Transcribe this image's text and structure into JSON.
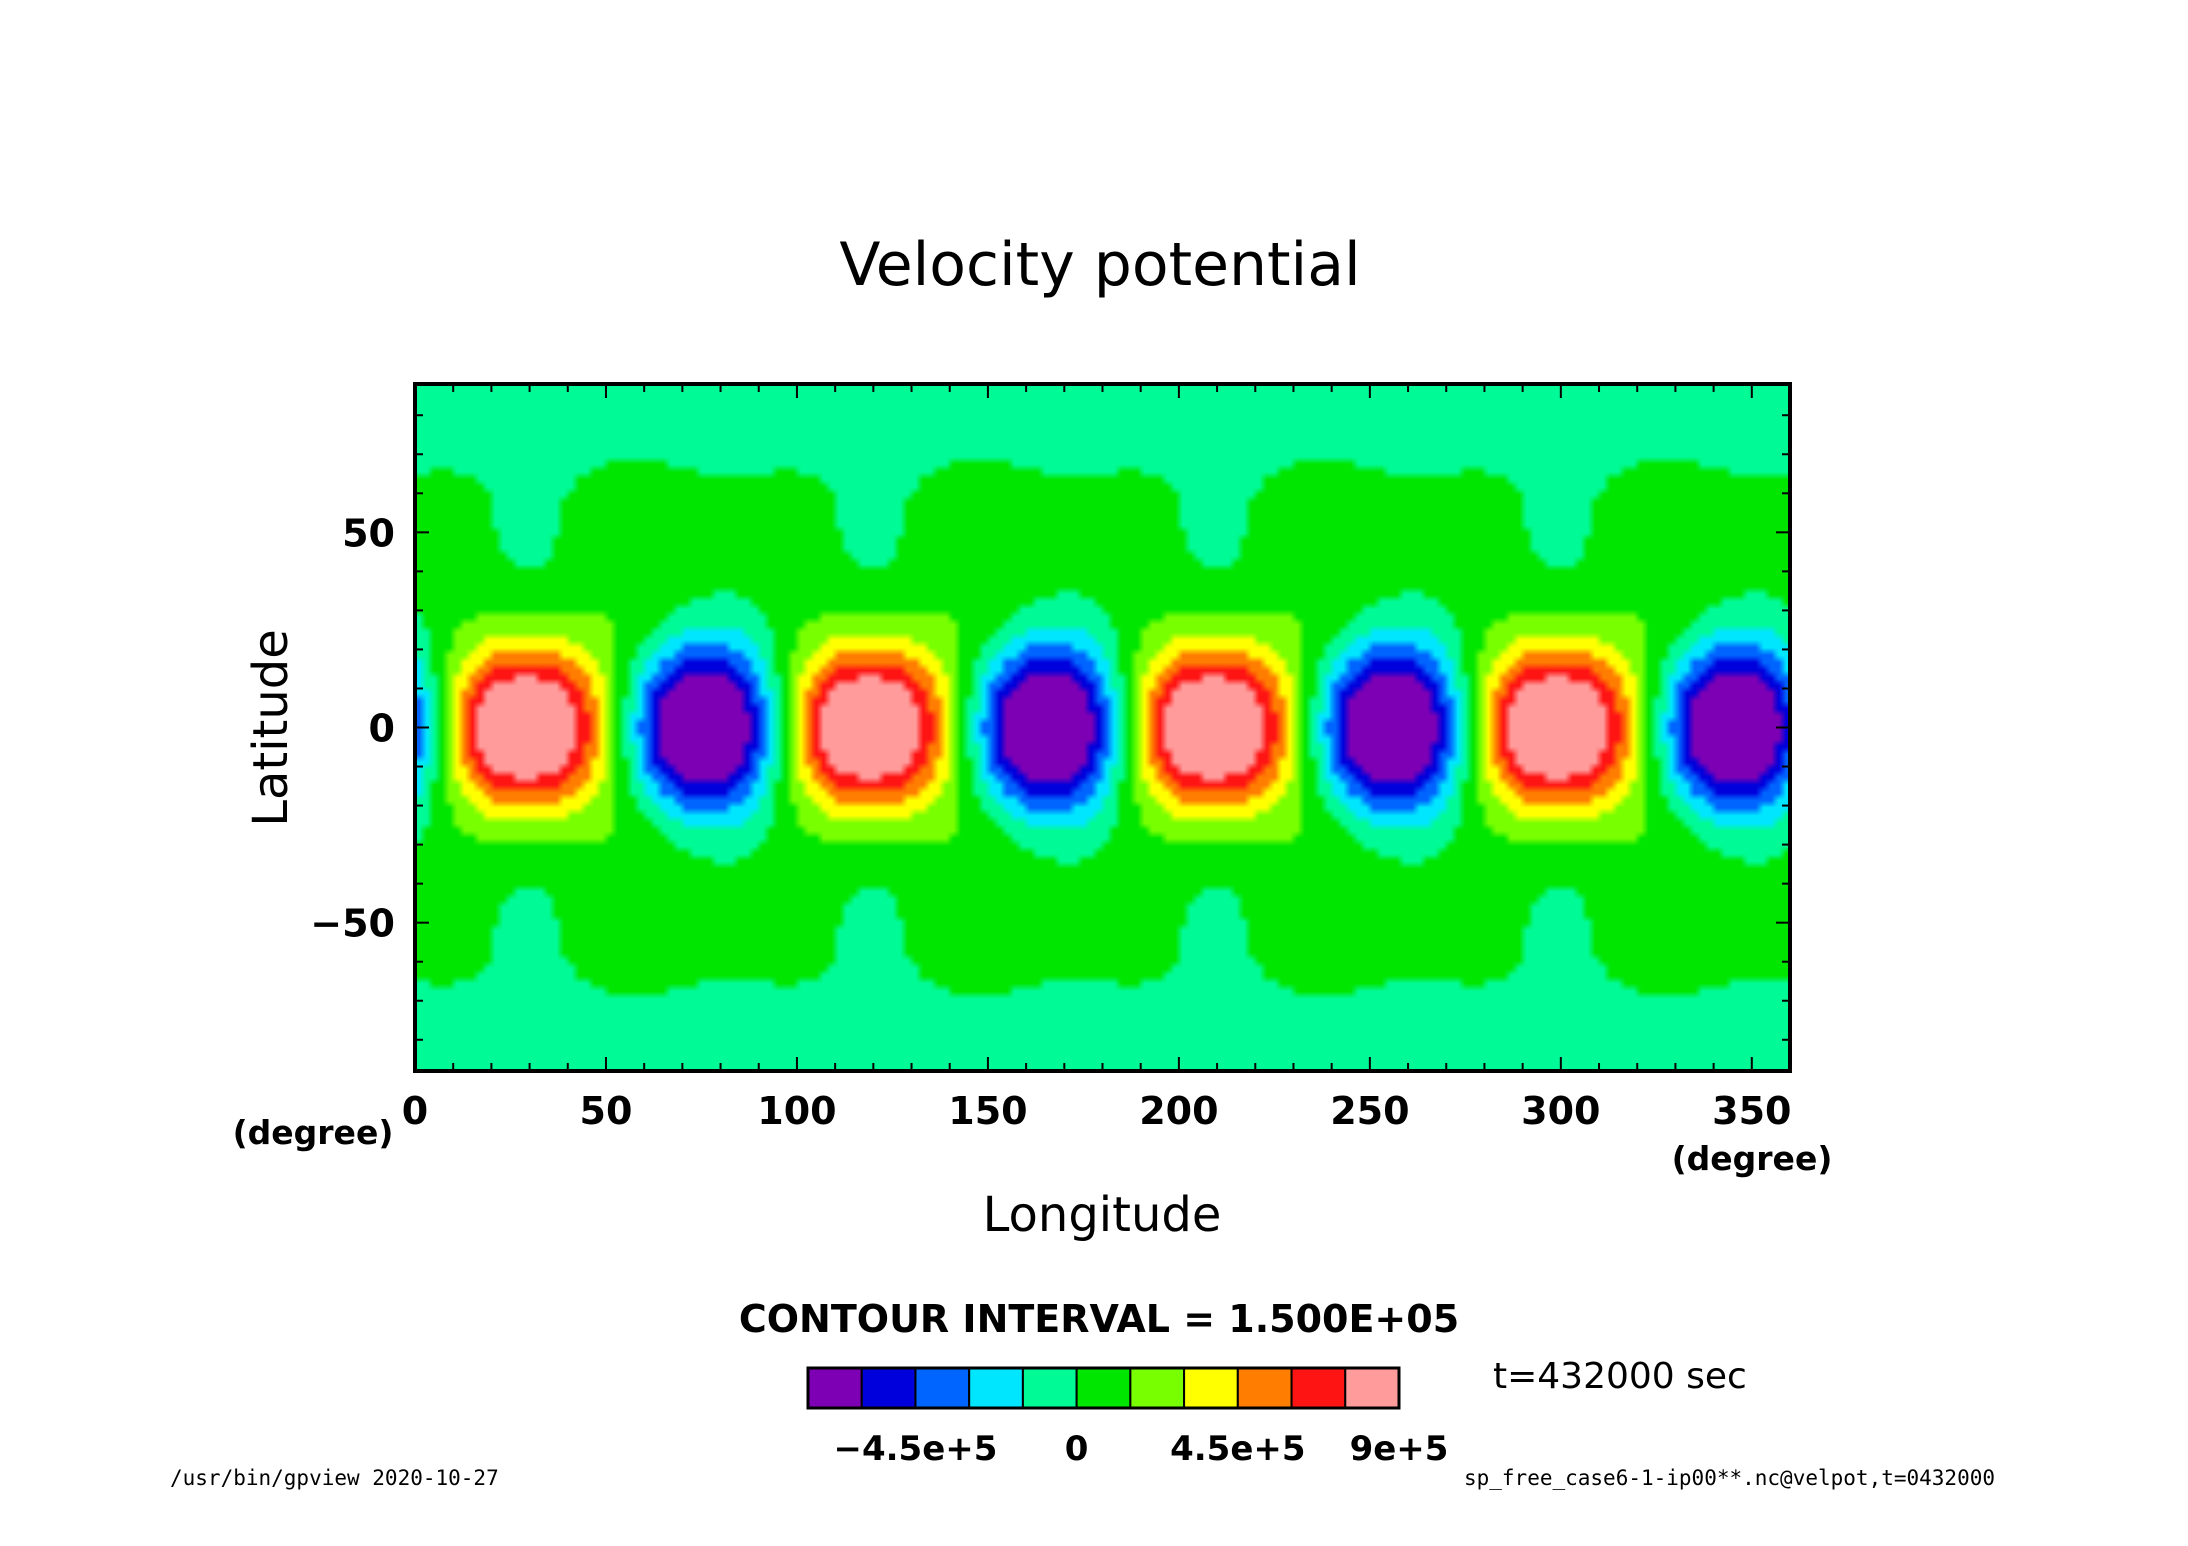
{
  "chart_data": {
    "type": "heatmap",
    "title": "Velocity potential",
    "xlabel": "Longitude",
    "ylabel": "Latitude",
    "x_unit": "(degree)",
    "y_unit": "(degree)",
    "xlim": [
      0,
      360
    ],
    "ylim": [
      -88,
      88
    ],
    "x_ticks": [
      0,
      50,
      100,
      150,
      200,
      250,
      300,
      350
    ],
    "x_tick_labels": [
      "0",
      "50",
      "100",
      "150",
      "200",
      "250",
      "300",
      "350"
    ],
    "y_ticks": [
      50,
      0,
      -50
    ],
    "y_tick_labels": [
      "50",
      "0",
      "−50"
    ],
    "contour_interval_text": "CONTOUR INTERVAL = 1.500E+05",
    "contour_interval": 150000,
    "wavenumber": 4,
    "amplitude": 1050000,
    "levels": [
      -600000,
      -450000,
      -300000,
      -150000,
      0,
      150000,
      300000,
      450000,
      600000,
      750000,
      900000
    ],
    "colorbar": {
      "colors": [
        "#7d00b4",
        "#0000dc",
        "#0064ff",
        "#00e6ff",
        "#00fa96",
        "#00e600",
        "#78ff00",
        "#ffff00",
        "#ff7d00",
        "#ff1414",
        "#ff9b9b"
      ],
      "tick_labels": [
        "−4.5e+5",
        "0",
        "4.5e+5",
        "9e+5"
      ],
      "tick_values": [
        -450000,
        0,
        450000,
        900000
      ]
    },
    "grid": false
  },
  "time_label": "t=432000 sec",
  "footer": {
    "left": "/usr/bin/gpview   2020-10-27",
    "right": "sp_free_case6-1-ip00**.nc@velpot,t=0432000"
  }
}
